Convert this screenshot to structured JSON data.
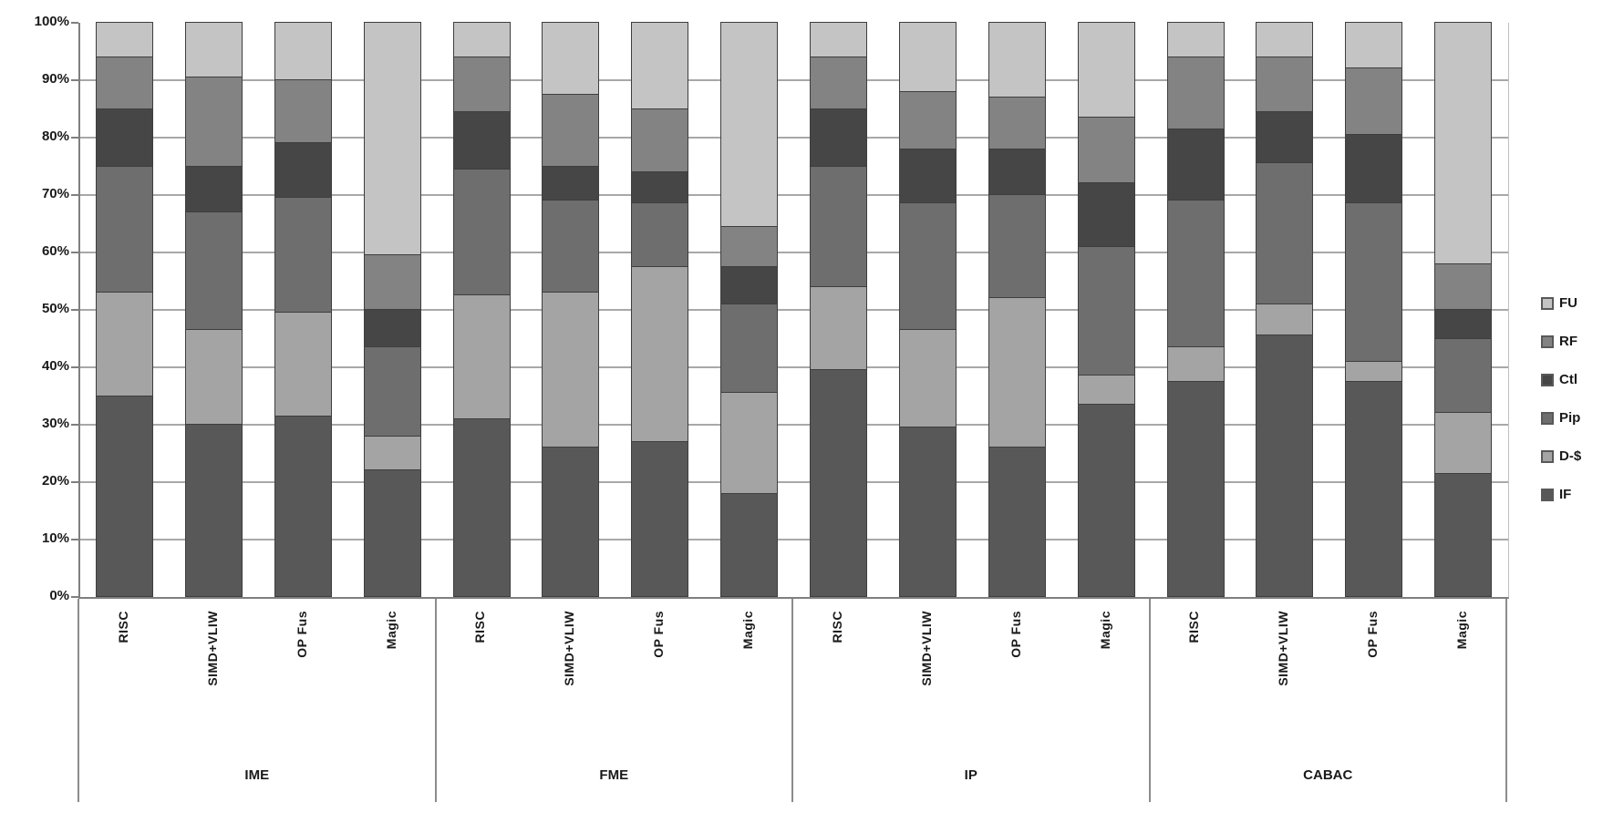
{
  "chart_data": {
    "type": "bar",
    "subtype": "stacked-100-percent",
    "title": "",
    "xlabel": "",
    "ylabel": "",
    "ylim": [
      0,
      100
    ],
    "grid": true,
    "legend_position": "right",
    "y_tick_labels_top_to_bottom": [
      "100%",
      "90%",
      "80%",
      "70%",
      "60%",
      "50%",
      "40%",
      "30%",
      "20%",
      "10%",
      "0%"
    ],
    "groups": [
      "IME",
      "FME",
      "IP",
      "CABAC"
    ],
    "categories_per_group": [
      "RISC",
      "SIMD+VLIW",
      "OP Fus",
      "Magic"
    ],
    "bar_order": [
      "IME-RISC",
      "IME-SIMD+VLIW",
      "IME-OP Fus",
      "IME-Magic",
      "FME-RISC",
      "FME-SIMD+VLIW",
      "FME-OP Fus",
      "FME-Magic",
      "IP-RISC",
      "IP-SIMD+VLIW",
      "IP-OP Fus",
      "IP-Magic",
      "CABAC-RISC",
      "CABAC-SIMD+VLIW",
      "CABAC-OP Fus",
      "CABAC-Magic"
    ],
    "stack_order_bottom_to_top": [
      "IF",
      "D-$",
      "Pip",
      "Ctl",
      "RF",
      "FU"
    ],
    "series": [
      {
        "name": "FU",
        "color": "#c4c4c4",
        "values": [
          6,
          9.5,
          10,
          40.5,
          6,
          12.5,
          15,
          35.5,
          6,
          12,
          13,
          16.5,
          6,
          6,
          8,
          42
        ]
      },
      {
        "name": "RF",
        "color": "#838383",
        "values": [
          9,
          15.5,
          11,
          9.5,
          9.5,
          12.5,
          11,
          7,
          9,
          10,
          9,
          11.5,
          12.5,
          9.5,
          11.5,
          8
        ]
      },
      {
        "name": "Ctl",
        "color": "#464646",
        "values": [
          10,
          8,
          9.5,
          6.5,
          10,
          6,
          5.5,
          6.5,
          10,
          9.5,
          8,
          11,
          12.5,
          9,
          12,
          5
        ]
      },
      {
        "name": "Pip",
        "color": "#6e6e6e",
        "values": [
          22,
          20.5,
          20,
          15.5,
          22,
          16,
          11,
          15.5,
          21,
          22,
          18,
          22.5,
          25.5,
          24.5,
          27.5,
          13
        ]
      },
      {
        "name": "D-$",
        "color": "#a4a4a4",
        "values": [
          18,
          16.5,
          18,
          6,
          21.5,
          27,
          30.5,
          17.5,
          14.5,
          17,
          26,
          5,
          6,
          5.5,
          3.5,
          10.5
        ]
      },
      {
        "name": "IF",
        "color": "#585858",
        "values": [
          35,
          30,
          31.5,
          22,
          31,
          26,
          27,
          18,
          39.5,
          29.5,
          26,
          33.5,
          37.5,
          45.5,
          37.5,
          21.5
        ]
      }
    ],
    "legend_entries_top_to_bottom": [
      "FU",
      "RF",
      "Ctl",
      "Pip",
      "D-$",
      "IF"
    ]
  },
  "style": {
    "gridline_color": "#a8a8a8",
    "axis_color": "#7f7f7f",
    "segment_border_color": "#3e3e3e",
    "text_color": "#1a1a1a"
  }
}
